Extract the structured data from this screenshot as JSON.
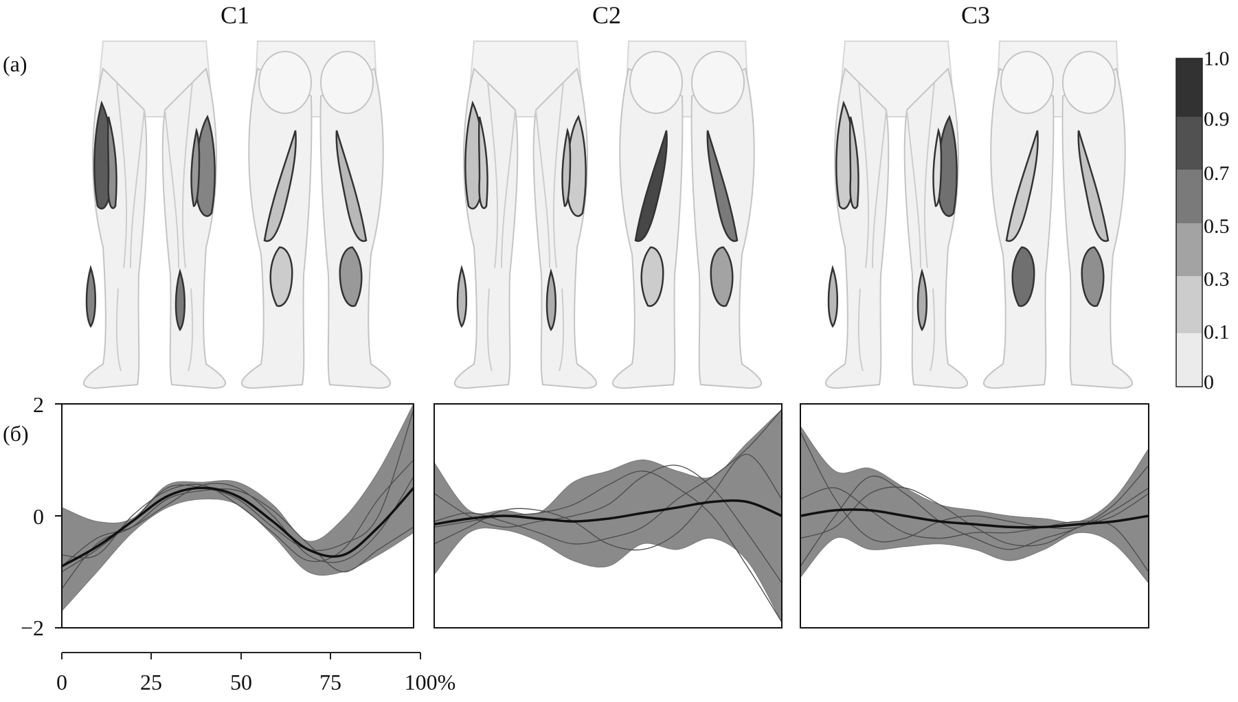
{
  "panel_labels": {
    "a": "(a)",
    "b": "(б)"
  },
  "components": [
    "C1",
    "C2",
    "C3"
  ],
  "colorbar": {
    "ticks": [
      "1.0",
      "0.9",
      "0.7",
      "0.5",
      "0.3",
      "0.1",
      "0"
    ],
    "levels": [
      0,
      0.1,
      0.3,
      0.5,
      0.7,
      0.9,
      1.0
    ]
  },
  "muscle_weights": [
    {
      "component": "C1",
      "front_left": [
        0.75,
        0.5
      ],
      "front_lower_left": 0.55,
      "front_right": [
        0.55,
        0.45
      ],
      "front_lower_right": 0.6,
      "back_left": 0.25,
      "back_left_calf": 0.2,
      "back_right": 0.3,
      "back_right_calf": 0.45
    },
    {
      "component": "C2",
      "front_left": [
        0.25,
        0.2
      ],
      "front_lower_left": 0.3,
      "front_right": [
        0.2,
        0.25
      ],
      "front_lower_right": 0.35,
      "back_left": 0.85,
      "back_left_calf": 0.2,
      "back_right": 0.6,
      "back_right_calf": 0.4
    },
    {
      "component": "C3",
      "front_left": [
        0.2,
        0.25
      ],
      "front_lower_left": 0.3,
      "front_right": [
        0.65,
        0.1
      ],
      "front_lower_right": 0.35,
      "back_left": 0.2,
      "back_left_calf": 0.65,
      "back_right": 0.25,
      "back_right_calf": 0.5
    }
  ],
  "chart_data": {
    "type": "line",
    "y_ticks": [
      "2",
      "0",
      "−2"
    ],
    "ylim": [
      -2,
      2
    ],
    "x_ticks": [
      "0",
      "25",
      "50",
      "75",
      "100%"
    ],
    "xlim": [
      0,
      100
    ],
    "panels": [
      {
        "name": "C1",
        "x": [
          0,
          10,
          20,
          30,
          40,
          50,
          60,
          70,
          80,
          90,
          100
        ],
        "mean": [
          -0.9,
          -0.55,
          -0.1,
          0.35,
          0.5,
          0.35,
          -0.1,
          -0.6,
          -0.7,
          -0.2,
          0.5
        ],
        "upper": [
          0.15,
          -0.1,
          -0.05,
          0.55,
          0.6,
          0.6,
          0.2,
          -0.45,
          -0.05,
          0.8,
          2.0
        ],
        "lower": [
          -1.7,
          -1.0,
          -0.3,
          0.15,
          0.3,
          0.2,
          -0.35,
          -1.0,
          -1.0,
          -0.7,
          -0.3
        ],
        "traces": [
          [
            -0.7,
            -0.7,
            0.0,
            0.45,
            0.55,
            0.2,
            -0.3,
            -0.8,
            -0.6,
            0.3,
            1.0
          ],
          [
            -1.3,
            -0.5,
            -0.2,
            0.3,
            0.45,
            0.45,
            0.1,
            -0.5,
            -1.0,
            -0.6,
            -0.2
          ],
          [
            -0.9,
            -0.4,
            -0.2,
            0.2,
            0.55,
            0.5,
            0.0,
            -0.7,
            -0.8,
            -0.3,
            0.7
          ],
          [
            -1.0,
            -0.6,
            -0.1,
            0.5,
            0.5,
            0.3,
            -0.2,
            -0.6,
            -0.5,
            0.0,
            1.9
          ]
        ]
      },
      {
        "name": "C2",
        "x": [
          0,
          10,
          20,
          30,
          40,
          50,
          60,
          70,
          80,
          90,
          100
        ],
        "mean": [
          -0.15,
          -0.05,
          0.0,
          -0.05,
          -0.1,
          -0.05,
          0.05,
          0.15,
          0.25,
          0.25,
          0.0
        ],
        "upper": [
          0.95,
          0.1,
          0.1,
          0.05,
          0.6,
          0.8,
          1.0,
          0.8,
          0.7,
          1.3,
          1.9
        ],
        "lower": [
          -1.05,
          -0.3,
          -0.25,
          -0.45,
          -0.8,
          -0.9,
          -0.5,
          -0.6,
          -0.4,
          -0.8,
          -1.9
        ],
        "traces": [
          [
            -0.2,
            -0.1,
            0.0,
            0.05,
            0.2,
            0.55,
            0.8,
            0.5,
            0.0,
            -0.9,
            -1.9
          ],
          [
            -0.1,
            0.05,
            -0.1,
            -0.3,
            -0.5,
            -0.4,
            -0.2,
            0.3,
            0.7,
            1.2,
            1.9
          ],
          [
            0.4,
            0.0,
            -0.2,
            -0.1,
            0.0,
            0.2,
            0.7,
            0.9,
            0.5,
            -0.3,
            -1.2
          ],
          [
            -0.5,
            -0.2,
            0.1,
            0.1,
            -0.1,
            -0.5,
            -0.6,
            -0.3,
            0.4,
            1.1,
            0.3
          ]
        ]
      },
      {
        "name": "C3",
        "x": [
          0,
          10,
          20,
          30,
          40,
          50,
          60,
          70,
          80,
          90,
          100
        ],
        "mean": [
          0.0,
          0.1,
          0.1,
          0.0,
          -0.1,
          -0.15,
          -0.2,
          -0.2,
          -0.15,
          -0.1,
          0.0
        ],
        "upper": [
          1.6,
          0.8,
          0.85,
          0.5,
          0.2,
          0.1,
          0.0,
          -0.05,
          -0.1,
          0.3,
          1.2
        ],
        "lower": [
          -1.1,
          -0.4,
          -0.6,
          -0.55,
          -0.5,
          -0.6,
          -0.8,
          -0.6,
          -0.3,
          -0.5,
          -1.2
        ],
        "traces": [
          [
            1.5,
            0.3,
            -0.4,
            -0.4,
            -0.1,
            0.0,
            -0.1,
            -0.2,
            -0.2,
            0.1,
            0.5
          ],
          [
            -0.9,
            0.0,
            0.7,
            0.4,
            -0.1,
            -0.4,
            -0.6,
            -0.4,
            -0.2,
            0.2,
            0.9
          ],
          [
            0.3,
            0.5,
            0.1,
            -0.3,
            -0.4,
            -0.3,
            -0.3,
            -0.2,
            -0.1,
            -0.2,
            -1.0
          ],
          [
            -0.4,
            -0.2,
            0.4,
            0.5,
            0.2,
            -0.2,
            -0.5,
            -0.5,
            -0.2,
            0.0,
            0.4
          ]
        ]
      }
    ]
  }
}
